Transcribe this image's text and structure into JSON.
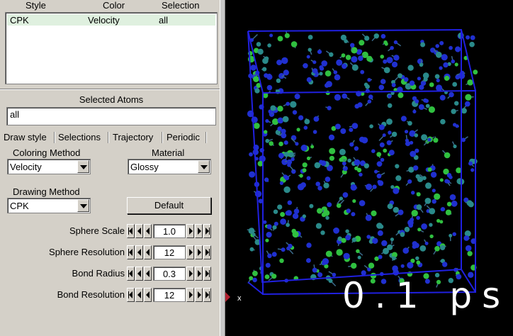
{
  "reps_table": {
    "headers": [
      "Style",
      "Color",
      "Selection"
    ],
    "rows": [
      {
        "style": "CPK",
        "color": "Velocity",
        "selection": "all"
      }
    ]
  },
  "selected_atoms": {
    "label": "Selected Atoms",
    "value": "all"
  },
  "tabs": [
    "Draw style",
    "Selections",
    "Trajectory",
    "Periodic"
  ],
  "coloring": {
    "label": "Coloring Method",
    "value": "Velocity"
  },
  "material": {
    "label": "Material",
    "value": "Glossy"
  },
  "drawing": {
    "label": "Drawing Method",
    "value": "CPK",
    "default_button": "Default"
  },
  "params": [
    {
      "label": "Sphere Scale",
      "value": "1.0"
    },
    {
      "label": "Sphere Resolution",
      "value": "12"
    },
    {
      "label": "Bond Radius",
      "value": "0.3"
    },
    {
      "label": "Bond Resolution",
      "value": "12"
    }
  ],
  "viewer": {
    "time_label": "0.1 ps",
    "axis_label": "x",
    "colors": {
      "box": "#2020e0",
      "atom_blue": "#2030d0",
      "atom_green": "#30c040",
      "atom_teal": "#2a8a8a"
    }
  }
}
